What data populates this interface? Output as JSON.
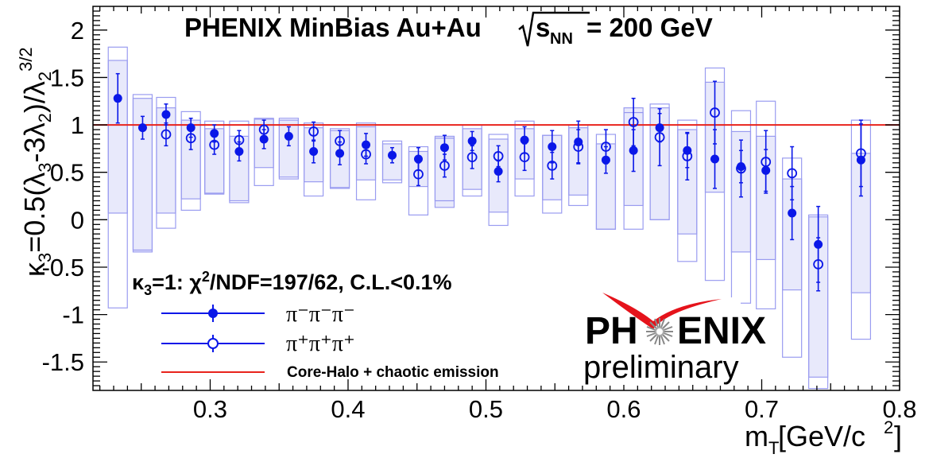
{
  "chart_data": {
    "type": "scatter",
    "title_main": "PHENIX MinBias Au+Au ",
    "title_sqrt": "s",
    "title_sqrt_sub": "NN",
    "title_tail": " = 200 GeV",
    "xlabel_main": "m",
    "xlabel_sub": "T",
    "xlabel_tail": " [GeV/c",
    "xlabel_sup": "2",
    "xlabel_close": "]",
    "ylabel": "κ3=0.5(λ3-3λ2)/λ2^3/2",
    "xlim": [
      0.215,
      0.8
    ],
    "ylim": [
      -1.8,
      2.25
    ],
    "x_ticks": [
      {
        "v": 0.3,
        "label": "0.3"
      },
      {
        "v": 0.4,
        "label": "0.4"
      },
      {
        "v": 0.5,
        "label": "0.5"
      },
      {
        "v": 0.6,
        "label": "0.6"
      },
      {
        "v": 0.7,
        "label": "0.7"
      },
      {
        "v": 0.8,
        "label": "0.8"
      }
    ],
    "y_ticks": [
      {
        "v": 2,
        "label": "2"
      },
      {
        "v": 1.5,
        "label": "1.5"
      },
      {
        "v": 1,
        "label": "1"
      },
      {
        "v": 0.5,
        "label": "0.5"
      },
      {
        "v": 0,
        "label": "0"
      },
      {
        "v": -0.5,
        "label": "-0.5"
      },
      {
        "v": -1,
        "label": "-1"
      },
      {
        "v": -1.5,
        "label": "-1.5"
      }
    ],
    "reference_line": {
      "y": 1,
      "color": "#e8231c"
    },
    "legend": {
      "header": "κ3=1: χ2/NDF=197/62, C.L.<0.1%",
      "entries": [
        {
          "label": "π⁻π⁻π⁻",
          "marker": "filled-circle",
          "color": "#0a17e8"
        },
        {
          "label": "π⁺π⁺π⁺",
          "marker": "open-circle",
          "color": "#0a17e8"
        },
        {
          "label": "Core-Halo + chaotic emission",
          "marker": "line",
          "color": "#e8231c"
        }
      ]
    },
    "series": [
      {
        "name": "π⁻π⁻π⁻",
        "marker": "filled-circle",
        "color": "#0a17e8",
        "points": [
          {
            "x": 0.233,
            "y": 1.28,
            "err": 0.26,
            "sys": [
              0.07,
              1.68
            ]
          },
          {
            "x": 0.251,
            "y": 0.97,
            "err": 0.12,
            "sys": [
              -0.34,
              1.28
            ]
          },
          {
            "x": 0.268,
            "y": 1.11,
            "err": 0.11,
            "sys": [
              0.07,
              1.18
            ]
          },
          {
            "x": 0.286,
            "y": 0.97,
            "err": 0.1,
            "sys": [
              0.22,
              1.05
            ]
          },
          {
            "x": 0.303,
            "y": 0.91,
            "err": 0.09,
            "sys": [
              0.28,
              0.96
            ]
          },
          {
            "x": 0.321,
            "y": 0.72,
            "err": 0.1,
            "sys": [
              0.2,
              0.88
            ]
          },
          {
            "x": 0.339,
            "y": 0.85,
            "err": 0.1,
            "sys": [
              0.55,
              1.06
            ]
          },
          {
            "x": 0.357,
            "y": 0.88,
            "err": 0.1,
            "sys": [
              0.45,
              1.05
            ]
          },
          {
            "x": 0.375,
            "y": 0.72,
            "err": 0.12,
            "sys": [
              0.4,
              0.97
            ]
          },
          {
            "x": 0.394,
            "y": 0.7,
            "err": 0.12,
            "sys": [
              0.34,
              0.94
            ]
          },
          {
            "x": 0.413,
            "y": 0.79,
            "err": 0.12,
            "sys": [
              0.42,
              0.98
            ]
          },
          {
            "x": 0.432,
            "y": 0.68,
            "err": 0.08,
            "sys": [
              0.42,
              0.8
            ]
          },
          {
            "x": 0.451,
            "y": 0.64,
            "err": 0.12,
            "sys": [
              0.35,
              0.72
            ]
          },
          {
            "x": 0.47,
            "y": 0.76,
            "err": 0.13,
            "sys": [
              0.13,
              0.88
            ]
          },
          {
            "x": 0.49,
            "y": 0.83,
            "err": 0.1,
            "sys": [
              0.32,
              0.96
            ]
          },
          {
            "x": 0.509,
            "y": 0.51,
            "err": 0.11,
            "sys": [
              0.08,
              0.85
            ]
          },
          {
            "x": 0.528,
            "y": 0.84,
            "err": 0.14,
            "sys": [
              0.43,
              0.96
            ]
          },
          {
            "x": 0.548,
            "y": 0.77,
            "err": 0.17,
            "sys": [
              0.21,
              0.89
            ]
          },
          {
            "x": 0.567,
            "y": 0.82,
            "err": 0.22,
            "sys": [
              0.26,
              0.97
            ]
          },
          {
            "x": 0.587,
            "y": 0.63,
            "err": 0.14,
            "sys": [
              -0.1,
              0.8
            ]
          },
          {
            "x": 0.607,
            "y": 0.73,
            "err": 0.22,
            "sys": [
              0.15,
              1.18
            ]
          },
          {
            "x": 0.626,
            "y": 0.97,
            "err": 0.15,
            "sys": [
              0.0,
              1.18
            ]
          },
          {
            "x": 0.646,
            "y": 0.73,
            "err": 0.18,
            "sys": [
              -0.15,
              0.95
            ]
          },
          {
            "x": 0.666,
            "y": 0.64,
            "err": 0.31,
            "sys": [
              0.29,
              1.45
            ]
          },
          {
            "x": 0.685,
            "y": 0.56,
            "err": 0.17,
            "sys": [
              -0.34,
              0.93
            ]
          },
          {
            "x": 0.703,
            "y": 0.52,
            "err": 0.22,
            "sys": [
              -0.42,
              0.88
            ]
          },
          {
            "x": 0.722,
            "y": 0.07,
            "err": 0.28,
            "sys": [
              -0.74,
              0.43
            ]
          },
          {
            "x": 0.741,
            "y": -0.26,
            "err": 0.4,
            "sys": [
              -1.66,
              0.03
            ]
          },
          {
            "x": 0.772,
            "y": 0.63,
            "err": 0.38,
            "sys": [
              -0.77,
              0.7
            ]
          }
        ]
      },
      {
        "name": "π⁺π⁺π⁺",
        "marker": "open-circle",
        "color": "#0a17e8",
        "points": [
          {
            "x": 0.268,
            "y": 0.9,
            "err": 0.12
          },
          {
            "x": 0.286,
            "y": 0.86,
            "err": 0.12
          },
          {
            "x": 0.303,
            "y": 0.79,
            "err": 0.1
          },
          {
            "x": 0.321,
            "y": 0.84,
            "err": 0.1
          },
          {
            "x": 0.339,
            "y": 0.95,
            "err": 0.1
          },
          {
            "x": 0.375,
            "y": 0.93,
            "err": 0.1
          },
          {
            "x": 0.394,
            "y": 0.83,
            "err": 0.11
          },
          {
            "x": 0.413,
            "y": 0.69,
            "err": 0.1
          },
          {
            "x": 0.451,
            "y": 0.48,
            "err": 0.12
          },
          {
            "x": 0.47,
            "y": 0.57,
            "err": 0.12
          },
          {
            "x": 0.49,
            "y": 0.66,
            "err": 0.12
          },
          {
            "x": 0.509,
            "y": 0.67,
            "err": 0.11
          },
          {
            "x": 0.528,
            "y": 0.66,
            "err": 0.14
          },
          {
            "x": 0.548,
            "y": 0.57,
            "err": 0.14
          },
          {
            "x": 0.567,
            "y": 0.77,
            "err": 0.18
          },
          {
            "x": 0.587,
            "y": 0.77,
            "err": 0.18
          },
          {
            "x": 0.607,
            "y": 1.03,
            "err": 0.25
          },
          {
            "x": 0.626,
            "y": 0.87,
            "err": 0.3
          },
          {
            "x": 0.646,
            "y": 0.67,
            "err": 0.25
          },
          {
            "x": 0.666,
            "y": 1.13,
            "err": 0.33
          },
          {
            "x": 0.685,
            "y": 0.54,
            "err": 0.3
          },
          {
            "x": 0.703,
            "y": 0.61,
            "err": 0.33
          },
          {
            "x": 0.722,
            "y": 0.49,
            "err": 0.28
          },
          {
            "x": 0.741,
            "y": -0.47,
            "err": 0.28
          },
          {
            "x": 0.772,
            "y": 0.7,
            "err": 0.35
          }
        ]
      }
    ],
    "sys_boxes_open": [
      {
        "x": 0.233,
        "y0": -0.93,
        "y1": 1.82
      },
      {
        "x": 0.251,
        "y0": -0.32,
        "y1": 1.32
      },
      {
        "x": 0.268,
        "y0": -0.09,
        "y1": 1.29
      },
      {
        "x": 0.286,
        "y0": 0.1,
        "y1": 1.14
      },
      {
        "x": 0.303,
        "y0": 0.27,
        "y1": 1.04
      },
      {
        "x": 0.321,
        "y0": 0.18,
        "y1": 1.04
      },
      {
        "x": 0.339,
        "y0": 0.36,
        "y1": 1.07
      },
      {
        "x": 0.357,
        "y0": 0.43,
        "y1": 1.07
      },
      {
        "x": 0.375,
        "y0": 0.25,
        "y1": 1.02
      },
      {
        "x": 0.394,
        "y0": 0.33,
        "y1": 0.96
      },
      {
        "x": 0.413,
        "y0": 0.21,
        "y1": 1.02
      },
      {
        "x": 0.432,
        "y0": 0.39,
        "y1": 0.83
      },
      {
        "x": 0.451,
        "y0": 0.05,
        "y1": 0.77
      },
      {
        "x": 0.47,
        "y0": 0.2,
        "y1": 0.86
      },
      {
        "x": 0.49,
        "y0": 0.25,
        "y1": 1.0
      },
      {
        "x": 0.509,
        "y0": -0.06,
        "y1": 0.9
      },
      {
        "x": 0.528,
        "y0": 0.25,
        "y1": 1.04
      },
      {
        "x": 0.548,
        "y0": 0.07,
        "y1": 0.89
      },
      {
        "x": 0.567,
        "y0": 0.15,
        "y1": 1.0
      },
      {
        "x": 0.587,
        "y0": -0.1,
        "y1": 0.9
      },
      {
        "x": 0.607,
        "y0": -0.1,
        "y1": 1.13
      },
      {
        "x": 0.626,
        "y0": 0.0,
        "y1": 1.22
      },
      {
        "x": 0.646,
        "y0": -0.44,
        "y1": 1.05
      },
      {
        "x": 0.666,
        "y0": -0.64,
        "y1": 1.6
      },
      {
        "x": 0.685,
        "y0": -0.88,
        "y1": 1.15
      },
      {
        "x": 0.703,
        "y0": -0.94,
        "y1": 1.25
      },
      {
        "x": 0.722,
        "y0": -1.45,
        "y1": 0.65
      },
      {
        "x": 0.741,
        "y0": -1.78,
        "y1": 0.05
      },
      {
        "x": 0.772,
        "y0": -1.26,
        "y1": 1.05
      }
    ],
    "logo": {
      "name_left": "PH",
      "name_right": "ENIX",
      "subtitle": "preliminary"
    }
  }
}
